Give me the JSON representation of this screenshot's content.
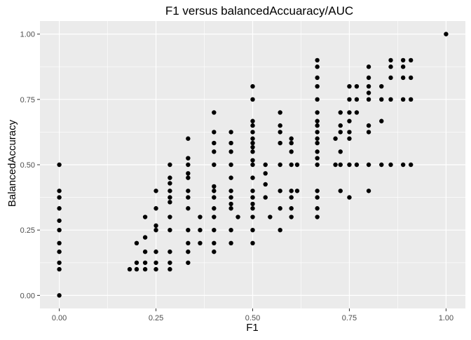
{
  "chart_data": {
    "type": "scatter",
    "title": "F1 versus balancedAccuaracy/AUC",
    "xlabel": "F1",
    "ylabel": "BalancedAccuracy",
    "xlim": [
      -0.05,
      1.05
    ],
    "ylim": [
      -0.05,
      1.05
    ],
    "x_ticks": [
      0,
      0.25,
      0.5,
      0.75,
      1
    ],
    "x_tick_labels": [
      "0.00",
      "0.25",
      "0.50",
      "0.75",
      "1.00"
    ],
    "y_ticks": [
      0,
      0.25,
      0.5,
      0.75,
      1
    ],
    "y_tick_labels": [
      "0.00",
      "0.25",
      "0.50",
      "0.75",
      "1.00"
    ],
    "grid": true,
    "legend": "none",
    "colors": {
      "panel": "#EBEBEB",
      "grid": "#FFFFFF",
      "point": "#000000",
      "text": "#4D4D4D",
      "title": "#000000"
    },
    "points": [
      {
        "x": 0,
        "y": 0
      },
      {
        "x": 0,
        "y": 0.1
      },
      {
        "x": 0,
        "y": 0.125
      },
      {
        "x": 0,
        "y": 0.167
      },
      {
        "x": 0,
        "y": 0.2
      },
      {
        "x": 0,
        "y": 0.25
      },
      {
        "x": 0,
        "y": 0.286
      },
      {
        "x": 0,
        "y": 0.333
      },
      {
        "x": 0,
        "y": 0.375
      },
      {
        "x": 0,
        "y": 0.4
      },
      {
        "x": 0,
        "y": 0.5
      },
      {
        "x": 0.182,
        "y": 0.1
      },
      {
        "x": 0.2,
        "y": 0.1
      },
      {
        "x": 0.2,
        "y": 0.125
      },
      {
        "x": 0.2,
        "y": 0.2
      },
      {
        "x": 0.222,
        "y": 0.1
      },
      {
        "x": 0.222,
        "y": 0.125
      },
      {
        "x": 0.222,
        "y": 0.167
      },
      {
        "x": 0.222,
        "y": 0.222
      },
      {
        "x": 0.222,
        "y": 0.3
      },
      {
        "x": 0.25,
        "y": 0.1
      },
      {
        "x": 0.25,
        "y": 0.125
      },
      {
        "x": 0.25,
        "y": 0.167
      },
      {
        "x": 0.25,
        "y": 0.25
      },
      {
        "x": 0.25,
        "y": 0.267
      },
      {
        "x": 0.25,
        "y": 0.333
      },
      {
        "x": 0.25,
        "y": 0.4
      },
      {
        "x": 0.286,
        "y": 0.1
      },
      {
        "x": 0.286,
        "y": 0.125
      },
      {
        "x": 0.286,
        "y": 0.167
      },
      {
        "x": 0.286,
        "y": 0.25
      },
      {
        "x": 0.286,
        "y": 0.3
      },
      {
        "x": 0.286,
        "y": 0.357
      },
      {
        "x": 0.286,
        "y": 0.375
      },
      {
        "x": 0.286,
        "y": 0.4
      },
      {
        "x": 0.286,
        "y": 0.429
      },
      {
        "x": 0.286,
        "y": 0.45
      },
      {
        "x": 0.286,
        "y": 0.5
      },
      {
        "x": 0.333,
        "y": 0.125
      },
      {
        "x": 0.333,
        "y": 0.167
      },
      {
        "x": 0.333,
        "y": 0.2
      },
      {
        "x": 0.333,
        "y": 0.25
      },
      {
        "x": 0.333,
        "y": 0.333
      },
      {
        "x": 0.333,
        "y": 0.375
      },
      {
        "x": 0.333,
        "y": 0.4
      },
      {
        "x": 0.333,
        "y": 0.45
      },
      {
        "x": 0.333,
        "y": 0.467
      },
      {
        "x": 0.333,
        "y": 0.5
      },
      {
        "x": 0.333,
        "y": 0.525
      },
      {
        "x": 0.333,
        "y": 0.6
      },
      {
        "x": 0.364,
        "y": 0.2
      },
      {
        "x": 0.364,
        "y": 0.25
      },
      {
        "x": 0.364,
        "y": 0.3
      },
      {
        "x": 0.4,
        "y": 0.167
      },
      {
        "x": 0.4,
        "y": 0.2
      },
      {
        "x": 0.4,
        "y": 0.25
      },
      {
        "x": 0.4,
        "y": 0.3
      },
      {
        "x": 0.4,
        "y": 0.333
      },
      {
        "x": 0.4,
        "y": 0.375
      },
      {
        "x": 0.4,
        "y": 0.4
      },
      {
        "x": 0.4,
        "y": 0.417
      },
      {
        "x": 0.4,
        "y": 0.5
      },
      {
        "x": 0.4,
        "y": 0.55
      },
      {
        "x": 0.4,
        "y": 0.583
      },
      {
        "x": 0.4,
        "y": 0.625
      },
      {
        "x": 0.4,
        "y": 0.7
      },
      {
        "x": 0.444,
        "y": 0.2
      },
      {
        "x": 0.444,
        "y": 0.25
      },
      {
        "x": 0.444,
        "y": 0.333
      },
      {
        "x": 0.444,
        "y": 0.35
      },
      {
        "x": 0.444,
        "y": 0.375
      },
      {
        "x": 0.444,
        "y": 0.4
      },
      {
        "x": 0.444,
        "y": 0.45
      },
      {
        "x": 0.444,
        "y": 0.5
      },
      {
        "x": 0.444,
        "y": 0.55
      },
      {
        "x": 0.444,
        "y": 0.583
      },
      {
        "x": 0.444,
        "y": 0.625
      },
      {
        "x": 0.462,
        "y": 0.3
      },
      {
        "x": 0.5,
        "y": 0.2
      },
      {
        "x": 0.5,
        "y": 0.25
      },
      {
        "x": 0.5,
        "y": 0.3
      },
      {
        "x": 0.5,
        "y": 0.333
      },
      {
        "x": 0.5,
        "y": 0.35
      },
      {
        "x": 0.5,
        "y": 0.375
      },
      {
        "x": 0.5,
        "y": 0.4
      },
      {
        "x": 0.5,
        "y": 0.45
      },
      {
        "x": 0.5,
        "y": 0.5
      },
      {
        "x": 0.5,
        "y": 0.517
      },
      {
        "x": 0.5,
        "y": 0.55
      },
      {
        "x": 0.5,
        "y": 0.567
      },
      {
        "x": 0.5,
        "y": 0.583
      },
      {
        "x": 0.5,
        "y": 0.6
      },
      {
        "x": 0.5,
        "y": 0.625
      },
      {
        "x": 0.5,
        "y": 0.65
      },
      {
        "x": 0.5,
        "y": 0.667
      },
      {
        "x": 0.5,
        "y": 0.75
      },
      {
        "x": 0.5,
        "y": 0.8
      },
      {
        "x": 0.533,
        "y": 0.375
      },
      {
        "x": 0.533,
        "y": 0.425
      },
      {
        "x": 0.533,
        "y": 0.467
      },
      {
        "x": 0.533,
        "y": 0.5
      },
      {
        "x": 0.545,
        "y": 0.3
      },
      {
        "x": 0.571,
        "y": 0.25
      },
      {
        "x": 0.571,
        "y": 0.333
      },
      {
        "x": 0.571,
        "y": 0.4
      },
      {
        "x": 0.571,
        "y": 0.5
      },
      {
        "x": 0.571,
        "y": 0.583
      },
      {
        "x": 0.571,
        "y": 0.625
      },
      {
        "x": 0.571,
        "y": 0.65
      },
      {
        "x": 0.571,
        "y": 0.7
      },
      {
        "x": 0.6,
        "y": 0.3
      },
      {
        "x": 0.6,
        "y": 0.333
      },
      {
        "x": 0.6,
        "y": 0.375
      },
      {
        "x": 0.6,
        "y": 0.4
      },
      {
        "x": 0.6,
        "y": 0.5
      },
      {
        "x": 0.6,
        "y": 0.55
      },
      {
        "x": 0.6,
        "y": 0.583
      },
      {
        "x": 0.6,
        "y": 0.6
      },
      {
        "x": 0.615,
        "y": 0.4
      },
      {
        "x": 0.615,
        "y": 0.5
      },
      {
        "x": 0.667,
        "y": 0.3
      },
      {
        "x": 0.667,
        "y": 0.333
      },
      {
        "x": 0.667,
        "y": 0.375
      },
      {
        "x": 0.667,
        "y": 0.4
      },
      {
        "x": 0.667,
        "y": 0.5
      },
      {
        "x": 0.667,
        "y": 0.525
      },
      {
        "x": 0.667,
        "y": 0.55
      },
      {
        "x": 0.667,
        "y": 0.583
      },
      {
        "x": 0.667,
        "y": 0.6
      },
      {
        "x": 0.667,
        "y": 0.625
      },
      {
        "x": 0.667,
        "y": 0.65
      },
      {
        "x": 0.667,
        "y": 0.667
      },
      {
        "x": 0.667,
        "y": 0.7
      },
      {
        "x": 0.667,
        "y": 0.75
      },
      {
        "x": 0.667,
        "y": 0.8
      },
      {
        "x": 0.667,
        "y": 0.833
      },
      {
        "x": 0.667,
        "y": 0.875
      },
      {
        "x": 0.667,
        "y": 0.9
      },
      {
        "x": 0.714,
        "y": 0.5
      },
      {
        "x": 0.714,
        "y": 0.6
      },
      {
        "x": 0.727,
        "y": 0.4
      },
      {
        "x": 0.727,
        "y": 0.5
      },
      {
        "x": 0.727,
        "y": 0.55
      },
      {
        "x": 0.727,
        "y": 0.625
      },
      {
        "x": 0.727,
        "y": 0.65
      },
      {
        "x": 0.727,
        "y": 0.7
      },
      {
        "x": 0.75,
        "y": 0.375
      },
      {
        "x": 0.75,
        "y": 0.5
      },
      {
        "x": 0.75,
        "y": 0.6
      },
      {
        "x": 0.75,
        "y": 0.625
      },
      {
        "x": 0.75,
        "y": 0.667
      },
      {
        "x": 0.75,
        "y": 0.7
      },
      {
        "x": 0.75,
        "y": 0.75
      },
      {
        "x": 0.75,
        "y": 0.8
      },
      {
        "x": 0.769,
        "y": 0.5
      },
      {
        "x": 0.769,
        "y": 0.7
      },
      {
        "x": 0.769,
        "y": 0.75
      },
      {
        "x": 0.769,
        "y": 0.8
      },
      {
        "x": 0.8,
        "y": 0.4
      },
      {
        "x": 0.8,
        "y": 0.5
      },
      {
        "x": 0.8,
        "y": 0.625
      },
      {
        "x": 0.8,
        "y": 0.65
      },
      {
        "x": 0.8,
        "y": 0.75
      },
      {
        "x": 0.8,
        "y": 0.775
      },
      {
        "x": 0.8,
        "y": 0.8
      },
      {
        "x": 0.8,
        "y": 0.833
      },
      {
        "x": 0.8,
        "y": 0.875
      },
      {
        "x": 0.833,
        "y": 0.5
      },
      {
        "x": 0.833,
        "y": 0.667
      },
      {
        "x": 0.833,
        "y": 0.75
      },
      {
        "x": 0.833,
        "y": 0.8
      },
      {
        "x": 0.857,
        "y": 0.5
      },
      {
        "x": 0.857,
        "y": 0.75
      },
      {
        "x": 0.857,
        "y": 0.833
      },
      {
        "x": 0.857,
        "y": 0.875
      },
      {
        "x": 0.857,
        "y": 0.9
      },
      {
        "x": 0.889,
        "y": 0.5
      },
      {
        "x": 0.889,
        "y": 0.75
      },
      {
        "x": 0.889,
        "y": 0.833
      },
      {
        "x": 0.889,
        "y": 0.875
      },
      {
        "x": 0.889,
        "y": 0.9
      },
      {
        "x": 0.909,
        "y": 0.5
      },
      {
        "x": 0.909,
        "y": 0.75
      },
      {
        "x": 0.909,
        "y": 0.833
      },
      {
        "x": 0.909,
        "y": 0.9
      },
      {
        "x": 1,
        "y": 1
      }
    ]
  }
}
